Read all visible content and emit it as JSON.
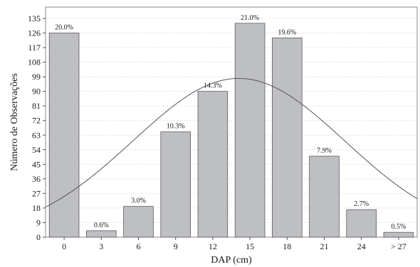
{
  "chart_data": {
    "type": "bar",
    "xlabel": "DAP (cm)",
    "ylabel": "Número de Observações",
    "categories": [
      "0",
      "3",
      "6",
      "9",
      "12",
      "15",
      "18",
      "21",
      "24",
      "> 27"
    ],
    "values": [
      126,
      4,
      19,
      65,
      90,
      132,
      123,
      50,
      17,
      3
    ],
    "data_labels": [
      "20.0%",
      "0.6%",
      "3.0%",
      "10.3%",
      "14.3%",
      "21.0%",
      "19.6%",
      "7.9%",
      "2.7%",
      "0.5%"
    ],
    "y_ticks": [
      "0",
      "9",
      "18",
      "27",
      "36",
      "45",
      "54",
      "63",
      "72",
      "81",
      "90",
      "99",
      "108",
      "117",
      "126",
      "135"
    ],
    "ylim": [
      0,
      142
    ],
    "grid": true,
    "curve": {
      "type": "normal-fit",
      "peak_value": 98,
      "peak_x_index": 4.7,
      "sigma_categories": 2.85
    },
    "colors": {
      "bar_fill": "#bebfc3",
      "bar_stroke": "#5a5a5a",
      "curve": "#555555",
      "grid": "#d0d0d0"
    }
  }
}
